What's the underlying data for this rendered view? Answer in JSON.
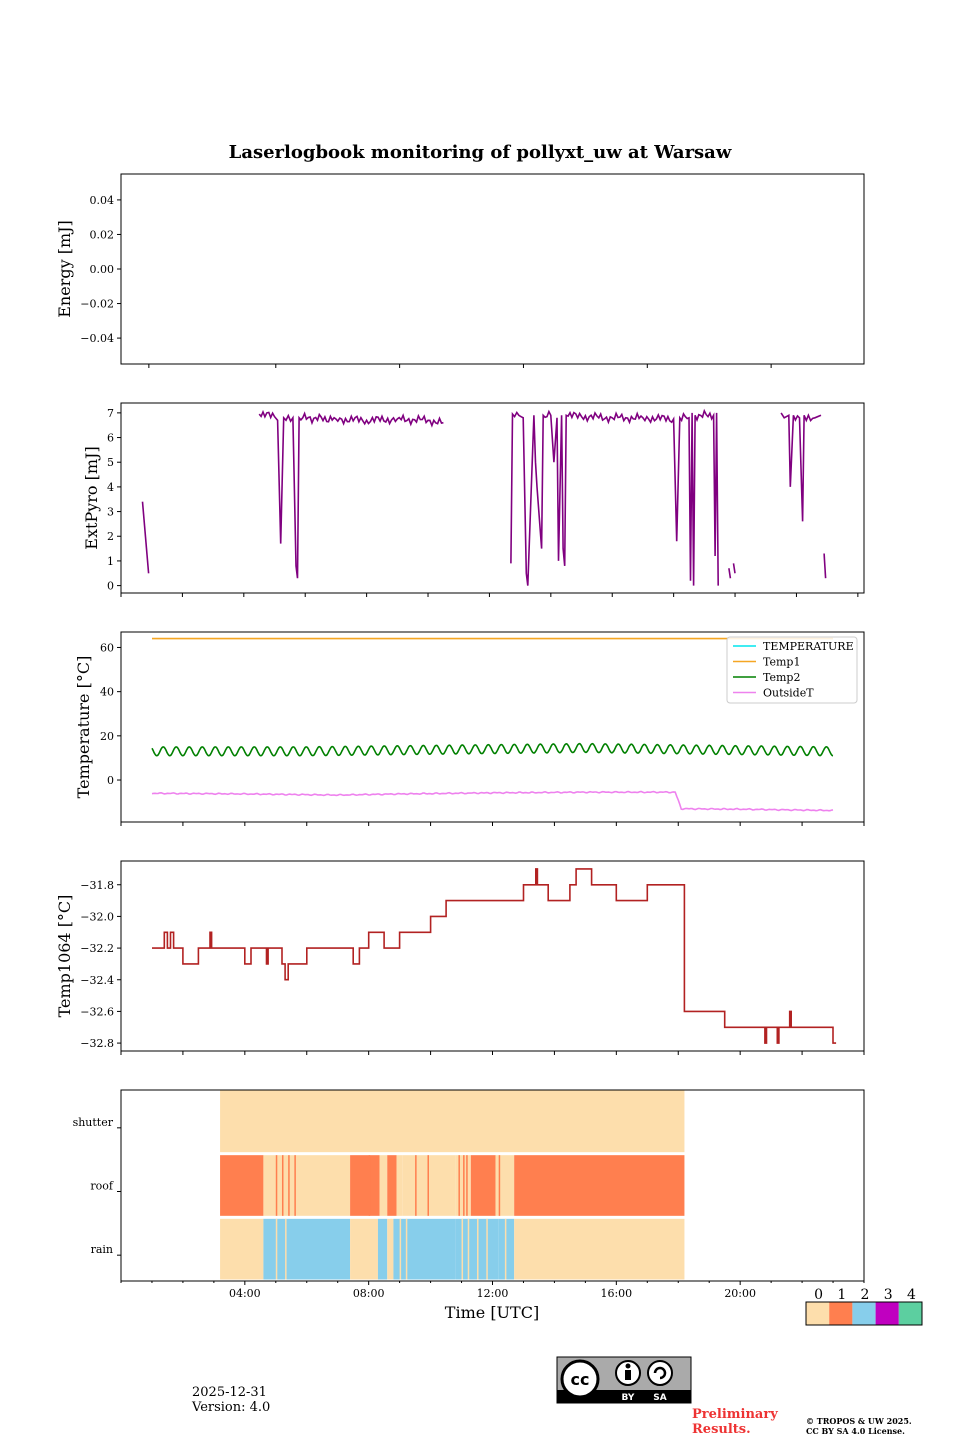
{
  "figure": {
    "title": "Laserlogbook monitoring of pollyxt_uw at Warsaw",
    "xlabel": "Time [UTC]",
    "date": "2025-12-31",
    "version": "Version: 4.0",
    "preliminary": [
      "Preliminary",
      "Results."
    ],
    "copyright": [
      "© TROPOS & UW 2025.",
      "CC BY SA 4.0 License."
    ],
    "license_badge": {
      "by": "BY",
      "sa": "SA"
    },
    "x_ticks": [
      "04:00",
      "08:00",
      "12:00",
      "16:00",
      "20:00"
    ]
  },
  "colors": {
    "extpyro": "#800080",
    "TEMPERATURE": "#00e5ee",
    "Temp1": "#f5a623",
    "Temp2": "#008000",
    "OutsideT": "#ee82ee",
    "temp1064": "#b22222",
    "flag": [
      "#fddeac",
      "#ff7f4f",
      "#87ceeb",
      "#c000c0",
      "#5ccfa0"
    ]
  },
  "chart_data": [
    {
      "id": "energy",
      "type": "line",
      "ylabel": "Energy [mJ]",
      "ylim": [
        -0.055,
        0.055
      ],
      "yticks": [
        -0.04,
        -0.02,
        0.0,
        0.02,
        0.04
      ],
      "ytick_labels": [
        "−0.04",
        "−0.02",
        "0.00",
        "0.02",
        "0.04"
      ],
      "xlim": [
        0,
        24
      ],
      "series": []
    },
    {
      "id": "extpyro",
      "type": "line",
      "ylabel": "ExtPyro [mJ]",
      "ylim": [
        -0.3,
        7.4
      ],
      "yticks": [
        0,
        1,
        2,
        3,
        4,
        5,
        6,
        7
      ],
      "ytick_labels": [
        "0",
        "1",
        "2",
        "3",
        "4",
        "5",
        "6",
        "7"
      ],
      "xlim": [
        0,
        24.2
      ],
      "series": [
        {
          "name": "ExtPyro",
          "segments": [
            [
              [
                0.7,
                3.4
              ],
              [
                0.9,
                0.5
              ]
            ],
            [
              [
                4.5,
                6.95
              ],
              [
                5.0,
                6.85
              ],
              [
                5.1,
                6.7
              ],
              [
                5.2,
                1.7
              ],
              [
                5.3,
                6.8
              ],
              [
                5.6,
                6.8
              ],
              [
                5.7,
                0.8
              ],
              [
                5.75,
                0.3
              ],
              [
                5.8,
                6.8
              ],
              [
                7.0,
                6.75
              ],
              [
                8.0,
                6.7
              ],
              [
                9.0,
                6.75
              ],
              [
                10.0,
                6.7
              ],
              [
                10.5,
                6.6
              ]
            ],
            [
              [
                12.7,
                0.9
              ],
              [
                12.75,
                6.95
              ],
              [
                13.1,
                6.8
              ],
              [
                13.2,
                0.5
              ],
              [
                13.25,
                0.0
              ],
              [
                13.45,
                6.9
              ],
              [
                13.5,
                5.0
              ],
              [
                13.55,
                4.0
              ],
              [
                13.7,
                1.5
              ],
              [
                13.75,
                6.9
              ],
              [
                14.0,
                6.9
              ],
              [
                14.1,
                5.0
              ],
              [
                14.2,
                6.8
              ],
              [
                14.25,
                1.0
              ],
              [
                14.35,
                6.9
              ],
              [
                14.4,
                1.5
              ],
              [
                14.45,
                0.8
              ],
              [
                14.5,
                6.9
              ],
              [
                15.0,
                6.85
              ],
              [
                16.0,
                6.8
              ],
              [
                17.0,
                6.8
              ],
              [
                18.0,
                6.75
              ],
              [
                18.1,
                1.8
              ],
              [
                18.2,
                6.8
              ],
              [
                18.5,
                6.8
              ],
              [
                18.55,
                0.2
              ],
              [
                18.6,
                7.0
              ],
              [
                18.65,
                0.0
              ],
              [
                18.7,
                6.9
              ],
              [
                19.3,
                6.9
              ],
              [
                19.35,
                1.2
              ],
              [
                19.4,
                7.0
              ],
              [
                19.45,
                0.0
              ]
            ],
            [
              [
                19.8,
                0.7
              ],
              [
                19.85,
                0.3
              ]
            ],
            [
              [
                19.95,
                0.9
              ],
              [
                20.0,
                0.5
              ]
            ],
            [
              [
                21.5,
                7.0
              ],
              [
                21.6,
                6.8
              ],
              [
                21.75,
                6.9
              ],
              [
                21.8,
                4.0
              ],
              [
                21.9,
                6.9
              ],
              [
                22.1,
                6.8
              ],
              [
                22.2,
                2.6
              ],
              [
                22.25,
                6.9
              ],
              [
                22.6,
                6.8
              ],
              [
                22.8,
                6.9
              ]
            ],
            [
              [
                22.9,
                1.3
              ],
              [
                22.95,
                0.3
              ]
            ]
          ]
        }
      ]
    },
    {
      "id": "temperature",
      "type": "line",
      "ylabel": "Temperature [°C]",
      "ylim": [
        -19,
        67
      ],
      "yticks": [
        0,
        20,
        40,
        60
      ],
      "ytick_labels": [
        "0",
        "20",
        "40",
        "60"
      ],
      "xlim": [
        0,
        24
      ],
      "legend_position": "upper right",
      "series": [
        {
          "name": "TEMPERATURE",
          "values": []
        },
        {
          "name": "Temp1",
          "x": [
            1.0,
            23.0
          ],
          "y": [
            64.0,
            64.0
          ],
          "osc_amp": 0
        },
        {
          "name": "Temp2",
          "x": [
            1.0,
            6.0,
            12.0,
            15.0,
            20.0,
            23.0
          ],
          "y": [
            13.0,
            13.0,
            14.0,
            14.5,
            13.5,
            13.0
          ],
          "osc_amp": 2.0
        },
        {
          "name": "OutsideT",
          "x": [
            1.0,
            4.0,
            7.0,
            9.0,
            12.0,
            15.0,
            17.9,
            18.1,
            20.0,
            23.0
          ],
          "y": [
            -6.0,
            -6.3,
            -6.8,
            -6.3,
            -5.8,
            -5.5,
            -5.5,
            -13.0,
            -13.2,
            -13.8
          ],
          "osc_amp": 0.3
        }
      ]
    },
    {
      "id": "temp1064",
      "type": "line",
      "ylabel": "Temp1064 [°C]",
      "ylim": [
        -32.85,
        -31.65
      ],
      "yticks": [
        -32.8,
        -32.6,
        -32.4,
        -32.2,
        -32.0,
        -31.8
      ],
      "ytick_labels": [
        "−32.8",
        "−32.6",
        "−32.4",
        "−32.2",
        "−32.0",
        "−31.8"
      ],
      "xlim": [
        0,
        24
      ],
      "series": [
        {
          "name": "Temp1064",
          "steps": [
            [
              1.0,
              -32.2
            ],
            [
              1.4,
              -32.1
            ],
            [
              1.5,
              -32.2
            ],
            [
              1.6,
              -32.1
            ],
            [
              1.7,
              -32.2
            ],
            [
              2.0,
              -32.3
            ],
            [
              2.5,
              -32.2
            ],
            [
              4.0,
              -32.3
            ],
            [
              4.2,
              -32.2
            ],
            [
              5.2,
              -32.3
            ],
            [
              5.3,
              -32.4
            ],
            [
              5.4,
              -32.3
            ],
            [
              6.0,
              -32.2
            ],
            [
              7.5,
              -32.3
            ],
            [
              7.7,
              -32.2
            ],
            [
              8.0,
              -32.1
            ],
            [
              8.5,
              -32.2
            ],
            [
              9.0,
              -32.1
            ],
            [
              10.0,
              -32.0
            ],
            [
              10.5,
              -31.9
            ],
            [
              11.5,
              -31.9
            ],
            [
              13.0,
              -31.8
            ],
            [
              13.8,
              -31.9
            ],
            [
              14.5,
              -31.8
            ],
            [
              14.7,
              -31.7
            ],
            [
              15.2,
              -31.8
            ],
            [
              16.0,
              -31.9
            ],
            [
              17.0,
              -31.8
            ],
            [
              18.2,
              -32.6
            ],
            [
              19.5,
              -32.7
            ],
            [
              20.0,
              -32.7
            ],
            [
              22.0,
              -32.7
            ],
            [
              23.0,
              -32.8
            ]
          ]
        }
      ]
    },
    {
      "id": "flags",
      "type": "heatmap",
      "rows": [
        "shutter",
        "roof",
        "rain"
      ],
      "xlim": [
        0,
        24
      ],
      "colorbar": {
        "ticks": [
          "0",
          "1",
          "2",
          "3",
          "4"
        ]
      },
      "blocks": {
        "shutter": [
          [
            3.2,
            18.2,
            0
          ]
        ],
        "roof": [
          [
            3.2,
            4.6,
            1
          ],
          [
            4.6,
            7.4,
            0
          ],
          [
            7.4,
            8.35,
            1
          ],
          [
            8.35,
            8.6,
            0
          ],
          [
            8.6,
            8.9,
            1
          ],
          [
            8.9,
            9.1,
            0
          ],
          [
            9.1,
            10.8,
            0
          ],
          [
            10.8,
            11.3,
            0
          ],
          [
            11.3,
            12.1,
            1
          ],
          [
            12.1,
            12.7,
            0
          ],
          [
            12.7,
            18.2,
            1
          ]
        ],
        "rain": [
          [
            3.2,
            4.6,
            0
          ],
          [
            4.6,
            7.4,
            2
          ],
          [
            7.4,
            8.3,
            0
          ],
          [
            8.3,
            8.6,
            2
          ],
          [
            8.6,
            8.8,
            0
          ],
          [
            8.8,
            10.8,
            2
          ],
          [
            10.8,
            12.2,
            2
          ],
          [
            12.2,
            12.7,
            2
          ],
          [
            12.7,
            18.2,
            0
          ]
        ]
      },
      "thin_lines": {
        "roof": [
          5.0,
          5.2,
          5.4,
          5.6,
          8.0,
          9.5,
          9.9,
          10.9,
          11.05,
          11.15,
          12.2
        ],
        "rain": [
          5.0,
          5.3,
          8.7,
          9.0,
          9.2,
          11.0,
          11.2,
          11.5,
          11.8,
          12.4
        ]
      }
    }
  ]
}
